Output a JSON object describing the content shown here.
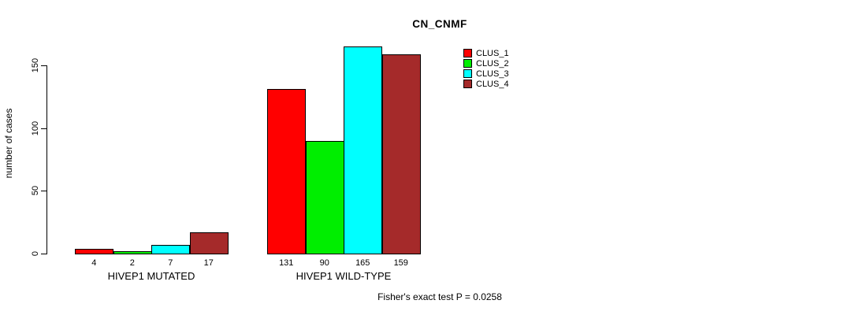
{
  "chart_data": {
    "type": "bar",
    "title": "CN_CNMF",
    "ylabel": "number of cases",
    "yticks": [
      0,
      50,
      100,
      150
    ],
    "ylim": [
      0,
      165
    ],
    "grid": false,
    "legend_position": "top-right",
    "groups": [
      {
        "label": "HIVEP1 MUTATED",
        "values": [
          4,
          2,
          7,
          17
        ]
      },
      {
        "label": "HIVEP1 WILD-TYPE",
        "values": [
          131,
          90,
          165,
          159
        ]
      }
    ],
    "series": [
      {
        "name": "CLUS_1",
        "color": "#FF0000"
      },
      {
        "name": "CLUS_2",
        "color": "#00EE00"
      },
      {
        "name": "CLUS_3",
        "color": "#00FFFF"
      },
      {
        "name": "CLUS_4",
        "color": "#A52A2A"
      }
    ],
    "bar_value_labels": true,
    "footnote": "Fisher's exact test P = 0.0258"
  }
}
